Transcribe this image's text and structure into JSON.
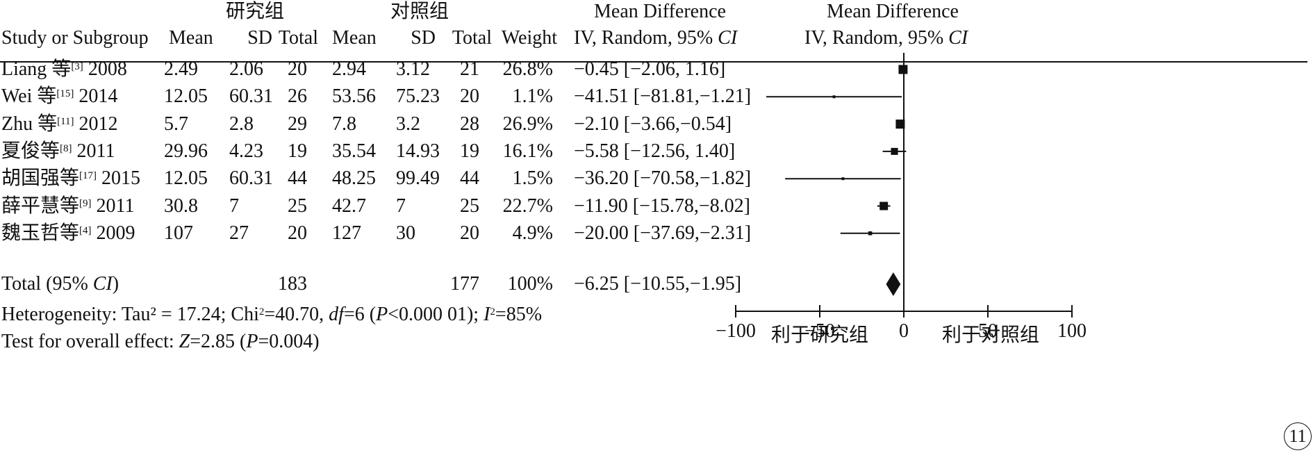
{
  "headers": {
    "group1": "研究组",
    "group2": "对照组",
    "md_col_title": "Mean Difference",
    "md_col_sub": "IV, Random, 95% CI",
    "plot_title": "Mean Difference",
    "plot_sub": "IV, Random, 95% CI",
    "study": "Study or Subgroup",
    "mean1": "Mean",
    "sd1": "SD",
    "total1": "Total",
    "mean2": "Mean",
    "sd2": "SD",
    "total2": "Total",
    "weight": "Weight"
  },
  "studies": [
    {
      "name": "Liang 等",
      "ref": "[3]",
      "year": "2008",
      "mean1": "2.49",
      "sd1": "2.06",
      "total1": "20",
      "mean2": "2.94",
      "sd2": "3.12",
      "total2": "21",
      "weight": "26.8%",
      "ci": "−0.45 [−2.06, 1.16]"
    },
    {
      "name": "Wei 等",
      "ref": "[15]",
      "year": "2014",
      "mean1": "12.05",
      "sd1": "60.31",
      "total1": "26",
      "mean2": "53.56",
      "sd2": "75.23",
      "total2": "20",
      "weight": "1.1%",
      "ci": "−41.51 [−81.81,−1.21]"
    },
    {
      "name": "Zhu 等",
      "ref": "[11]",
      "year": "2012",
      "mean1": "5.7",
      "sd1": "2.8",
      "total1": "29",
      "mean2": "7.8",
      "sd2": "3.2",
      "total2": "28",
      "weight": "26.9%",
      "ci": "−2.10 [−3.66,−0.54]"
    },
    {
      "name": "夏俊等",
      "ref": "[8]",
      "year": "2011",
      "mean1": "29.96",
      "sd1": "4.23",
      "total1": "19",
      "mean2": "35.54",
      "sd2": "14.93",
      "total2": "19",
      "weight": "16.1%",
      "ci": "−5.58 [−12.56, 1.40]"
    },
    {
      "name": "胡国强等",
      "ref": "[17]",
      "year": "2015",
      "mean1": "12.05",
      "sd1": "60.31",
      "total1": "44",
      "mean2": "48.25",
      "sd2": "99.49",
      "total2": "44",
      "weight": "1.5%",
      "ci": "−36.20 [−70.58,−1.82]"
    },
    {
      "name": "薛平慧等",
      "ref": "[9]",
      "year": "2011",
      "mean1": "30.8",
      "sd1": "7",
      "total1": "25",
      "mean2": "42.7",
      "sd2": "7",
      "total2": "25",
      "weight": "22.7%",
      "ci": "−11.90 [−15.78,−8.02]"
    },
    {
      "name": "魏玉哲等",
      "ref": "[4]",
      "year": "2009",
      "mean1": "107",
      "sd1": "27",
      "total1": "20",
      "mean2": "127",
      "sd2": "30",
      "total2": "20",
      "weight": "4.9%",
      "ci": "−20.00 [−37.69,−2.31]"
    }
  ],
  "total": {
    "label_pre": "Total (95% ",
    "label_ci": "CI",
    "label_post": ")",
    "total1": "183",
    "total2": "177",
    "weight": "100%",
    "ci": "−6.25 [−10.55,−1.95]"
  },
  "heterogeneity": {
    "p1": "Heterogeneity: Tau² = 17.24; Chi",
    "chi_sup": "2",
    "p2": "=40.70, ",
    "df": "df",
    "p3": "=6 (",
    "p": "P",
    "p4": "<0.000 01); ",
    "i": "I",
    "i_sup": "2",
    "p5": "=85%"
  },
  "overall": {
    "p1": "Test for overall effect: ",
    "z": "Z",
    "p2": "=2.85 (",
    "p": "P",
    "p3": "=0.004)"
  },
  "axis": {
    "favors_left": "利于研究组",
    "favors_right": "利于对照组"
  },
  "figure_number": "11",
  "chart_data": {
    "type": "forest",
    "xlim": [
      -100,
      100
    ],
    "ticks": [
      -100,
      -50,
      0,
      50,
      100
    ],
    "tick_labels": [
      "−100",
      "−50",
      "0",
      "50",
      "100"
    ],
    "null_line": 0,
    "studies": [
      {
        "md": -0.45,
        "lo": -2.06,
        "hi": 1.16,
        "weight": 26.8
      },
      {
        "md": -41.51,
        "lo": -81.81,
        "hi": -1.21,
        "weight": 1.1
      },
      {
        "md": -2.1,
        "lo": -3.66,
        "hi": -0.54,
        "weight": 26.9
      },
      {
        "md": -5.58,
        "lo": -12.56,
        "hi": 1.4,
        "weight": 16.1
      },
      {
        "md": -36.2,
        "lo": -70.58,
        "hi": -1.82,
        "weight": 1.5
      },
      {
        "md": -11.9,
        "lo": -15.78,
        "hi": -8.02,
        "weight": 22.7
      },
      {
        "md": -20.0,
        "lo": -37.69,
        "hi": -2.31,
        "weight": 4.9
      }
    ],
    "pooled": {
      "md": -6.25,
      "lo": -10.55,
      "hi": -1.95
    }
  }
}
